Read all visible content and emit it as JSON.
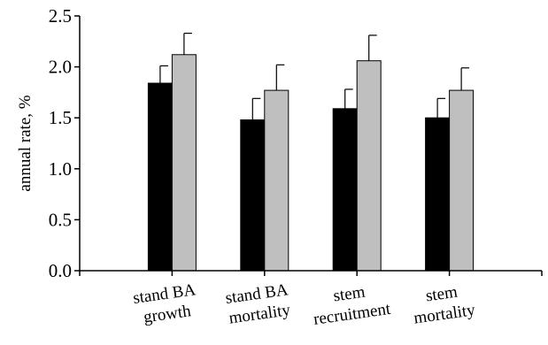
{
  "chart_data": {
    "type": "bar",
    "ylabel": "annual rate, %",
    "ylim": [
      0,
      2.5
    ],
    "yticks": [
      "0.0",
      "0.5",
      "1.0",
      "1.5",
      "2.0",
      "2.5"
    ],
    "categories": [
      [
        "stand BA",
        "growth"
      ],
      [
        "stand BA",
        "mortality"
      ],
      [
        "stem",
        "recruitment"
      ],
      [
        "stem",
        "mortality"
      ]
    ],
    "series": [
      {
        "color": "#000000",
        "values": [
          1.84,
          1.48,
          1.59,
          1.5
        ],
        "errors": [
          0.17,
          0.21,
          0.19,
          0.19
        ]
      },
      {
        "color": "#bfbfbf",
        "values": [
          2.12,
          1.77,
          2.06,
          1.77
        ],
        "errors": [
          0.21,
          0.25,
          0.25,
          0.22
        ]
      }
    ],
    "grid": false,
    "legend": "none"
  }
}
